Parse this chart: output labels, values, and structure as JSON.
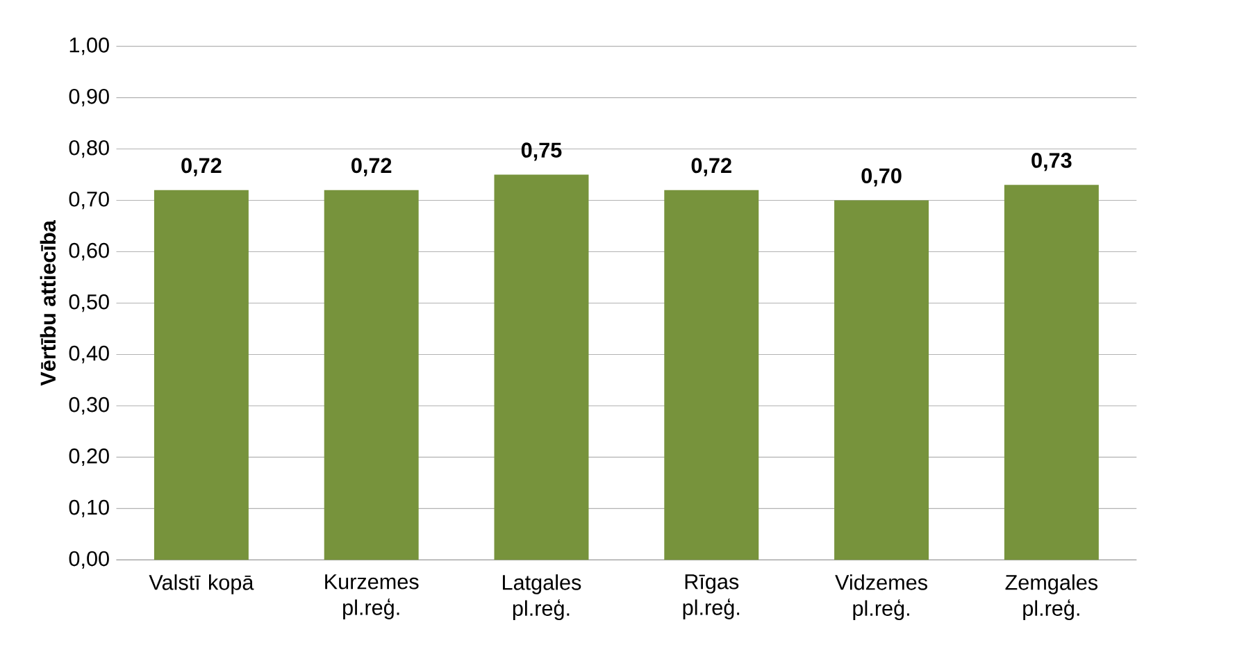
{
  "chart_data": {
    "type": "bar",
    "ylabel": "Vērtību attiecība",
    "categories": [
      "Valstī kopā",
      "Kurzemes pl.reģ.",
      "Latgales pl.reģ.",
      "Rīgas pl.reģ.",
      "Vidzemes pl.reģ.",
      "Zemgales pl.reģ."
    ],
    "values": [
      0.72,
      0.72,
      0.75,
      0.72,
      0.7,
      0.73
    ],
    "value_labels": [
      "0,72",
      "0,72",
      "0,75",
      "0,72",
      "0,70",
      "0,73"
    ],
    "color": "#77933c",
    "ylim": [
      0,
      1
    ],
    "yticks": [
      {
        "value": 0,
        "label": "0,00"
      },
      {
        "value": 0.1,
        "label": "0,10"
      },
      {
        "value": 0.2,
        "label": "0,20"
      },
      {
        "value": 0.3,
        "label": "0,30"
      },
      {
        "value": 0.4,
        "label": "0,40"
      },
      {
        "value": 0.5,
        "label": "0,50"
      },
      {
        "value": 0.6,
        "label": "0,60"
      },
      {
        "value": 0.7,
        "label": "0,70"
      },
      {
        "value": 0.8,
        "label": "0,80"
      },
      {
        "value": 0.9,
        "label": "0,90"
      },
      {
        "value": 1.0,
        "label": "1,00"
      }
    ],
    "grid": "y"
  }
}
